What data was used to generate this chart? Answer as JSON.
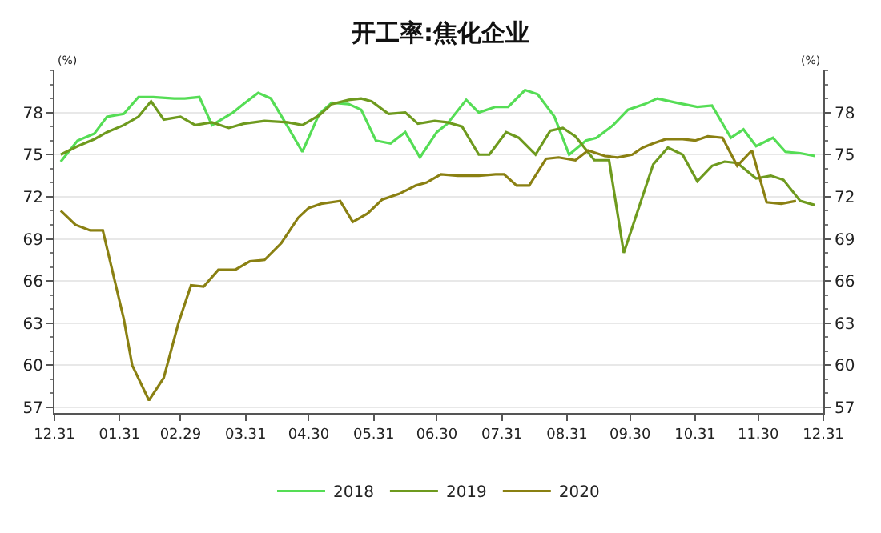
{
  "chart_data": {
    "type": "line",
    "title": "开工率:焦化企业",
    "ylabel": "(%)",
    "y2label": "(%)",
    "xlim": [
      "2019-12-31",
      "2020-12-31"
    ],
    "xticks": [
      {
        "value": "2019-12-31",
        "label": "12.31"
      },
      {
        "value": "2020-01-31",
        "label": "01.31"
      },
      {
        "value": "2020-02-29",
        "label": "02.29"
      },
      {
        "value": "2020-03-31",
        "label": "03.31"
      },
      {
        "value": "2020-04-30",
        "label": "04.30"
      },
      {
        "value": "2020-05-31",
        "label": "05.31"
      },
      {
        "value": "2020-06-30",
        "label": "06.30"
      },
      {
        "value": "2020-07-31",
        "label": "07.31"
      },
      {
        "value": "2020-08-31",
        "label": "08.31"
      },
      {
        "value": "2020-09-30",
        "label": "09.30"
      },
      {
        "value": "2020-10-31",
        "label": "10.31"
      },
      {
        "value": "2020-11-30",
        "label": "11.30"
      },
      {
        "value": "2020-12-31",
        "label": "12.31"
      }
    ],
    "ylim": [
      56.6,
      81
    ],
    "yticks": [
      57,
      60,
      63,
      66,
      69,
      72,
      75,
      78
    ],
    "y2lim": [
      56.6,
      81
    ],
    "y2ticks": [
      57,
      60,
      63,
      66,
      69,
      72,
      75,
      78
    ],
    "grid": "y",
    "legend": "bottom",
    "marker": "none",
    "line_style": "solid",
    "series": [
      {
        "name": "2018",
        "color": "#55dd55",
        "x": [
          "2020-01-03",
          "2020-01-11",
          "2020-01-19",
          "2020-01-25",
          "2020-02-02",
          "2020-02-09",
          "2020-02-16",
          "2020-02-26",
          "2020-03-02",
          "2020-03-09",
          "2020-03-15",
          "2020-03-25",
          "2020-03-30",
          "2020-04-06",
          "2020-04-12",
          "2020-04-20",
          "2020-04-27",
          "2020-05-05",
          "2020-05-11",
          "2020-05-19",
          "2020-05-25",
          "2020-06-01",
          "2020-06-08",
          "2020-06-15",
          "2020-06-22",
          "2020-06-30",
          "2020-07-05",
          "2020-07-14",
          "2020-07-20",
          "2020-07-28",
          "2020-08-03",
          "2020-08-11",
          "2020-08-17",
          "2020-08-25",
          "2020-09-01",
          "2020-09-09",
          "2020-09-14",
          "2020-09-22",
          "2020-09-29",
          "2020-10-07",
          "2020-10-13",
          "2020-10-22",
          "2020-11-01",
          "2020-11-08",
          "2020-11-17",
          "2020-11-23",
          "2020-11-29",
          "2020-12-07",
          "2020-12-13",
          "2020-12-20",
          "2020-12-27"
        ],
        "values": [
          74.5,
          76,
          76.5,
          77.7,
          77.9,
          79.1,
          79.1,
          79,
          79,
          79.1,
          77.1,
          78,
          78.6,
          79.4,
          79,
          77,
          75.2,
          77.9,
          78.7,
          78.6,
          78.2,
          76,
          75.8,
          76.6,
          74.8,
          76.6,
          77.2,
          78.9,
          78,
          78.4,
          78.4,
          79.6,
          79.3,
          77.7,
          75,
          76,
          76.2,
          77.1,
          78.2,
          78.6,
          79,
          78.7,
          78.4,
          78.5,
          76.2,
          76.8,
          75.6,
          76.2,
          75.2,
          75.1,
          74.9
        ]
      },
      {
        "name": "2019",
        "color": "#6e9a1e",
        "x": [
          "2020-01-03",
          "2020-01-11",
          "2020-01-19",
          "2020-01-25",
          "2020-02-02",
          "2020-02-09",
          "2020-02-15",
          "2020-02-21",
          "2020-02-29",
          "2020-03-07",
          "2020-03-15",
          "2020-03-23",
          "2020-03-30",
          "2020-04-09",
          "2020-04-20",
          "2020-04-27",
          "2020-05-05",
          "2020-05-11",
          "2020-05-19",
          "2020-05-25",
          "2020-05-30",
          "2020-06-07",
          "2020-06-15",
          "2020-06-21",
          "2020-06-29",
          "2020-07-05",
          "2020-07-12",
          "2020-07-20",
          "2020-07-25",
          "2020-08-02",
          "2020-08-08",
          "2020-08-16",
          "2020-08-23",
          "2020-08-29",
          "2020-09-04",
          "2020-09-13",
          "2020-09-20",
          "2020-09-27",
          "2020-10-11",
          "2020-10-18",
          "2020-10-25",
          "2020-11-01",
          "2020-11-08",
          "2020-11-14",
          "2020-11-20",
          "2020-11-29",
          "2020-12-06",
          "2020-12-12",
          "2020-12-20",
          "2020-12-27"
        ],
        "values": [
          75,
          75.6,
          76.1,
          76.6,
          77.1,
          77.7,
          78.8,
          77.5,
          77.7,
          77.1,
          77.3,
          76.9,
          77.2,
          77.4,
          77.3,
          77.1,
          77.8,
          78.6,
          78.9,
          79,
          78.8,
          77.9,
          78,
          77.2,
          77.4,
          77.3,
          77,
          75,
          75,
          76.6,
          76.2,
          75,
          76.7,
          76.9,
          76.3,
          74.6,
          74.6,
          68,
          74.3,
          75.5,
          75,
          73.1,
          74.2,
          74.5,
          74.4,
          73.3,
          73.5,
          73.2,
          71.7,
          71.4
        ]
      },
      {
        "name": "2020",
        "color": "#8a8012",
        "x": [
          "2020-01-03",
          "2020-01-10",
          "2020-01-17",
          "2020-01-23",
          "2020-02-02",
          "2020-02-06",
          "2020-02-14",
          "2020-02-21",
          "2020-02-28",
          "2020-03-05",
          "2020-03-11",
          "2020-03-18",
          "2020-03-26",
          "2020-04-02",
          "2020-04-09",
          "2020-04-17",
          "2020-04-25",
          "2020-04-30",
          "2020-05-06",
          "2020-05-15",
          "2020-05-21",
          "2020-05-28",
          "2020-06-04",
          "2020-06-12",
          "2020-06-20",
          "2020-06-25",
          "2020-07-02",
          "2020-07-10",
          "2020-07-20",
          "2020-07-28",
          "2020-08-01",
          "2020-08-07",
          "2020-08-13",
          "2020-08-21",
          "2020-08-27",
          "2020-09-04",
          "2020-09-10",
          "2020-09-18",
          "2020-09-24",
          "2020-10-01",
          "2020-10-06",
          "2020-10-11",
          "2020-10-17",
          "2020-10-25",
          "2020-10-31",
          "2020-11-06",
          "2020-11-13",
          "2020-11-20",
          "2020-11-27",
          "2020-12-04",
          "2020-12-11",
          "2020-12-18"
        ],
        "values": [
          71,
          70,
          69.6,
          69.6,
          63.3,
          60,
          57.5,
          59.1,
          63,
          65.7,
          65.6,
          66.8,
          66.8,
          67.4,
          67.5,
          68.7,
          70.5,
          71.2,
          71.5,
          71.7,
          70.2,
          70.8,
          71.8,
          72.2,
          72.8,
          73,
          73.6,
          73.5,
          73.5,
          73.6,
          73.6,
          72.8,
          72.8,
          74.7,
          74.8,
          74.6,
          75.3,
          74.9,
          74.8,
          75,
          75.5,
          75.8,
          76.1,
          76.1,
          76,
          76.3,
          76.2,
          74.2,
          75.3,
          71.6,
          71.5,
          71.7
        ]
      }
    ]
  }
}
